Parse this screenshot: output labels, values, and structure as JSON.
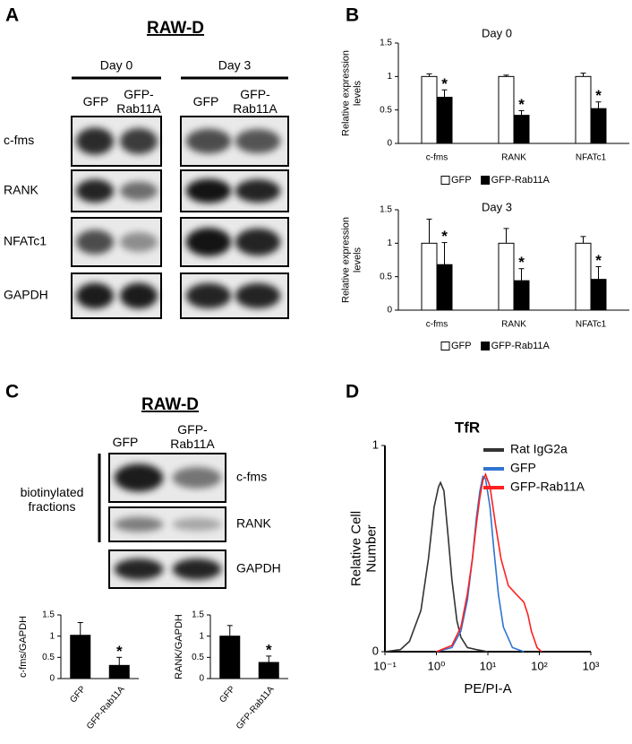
{
  "figure": {
    "panel_labels": [
      "A",
      "B",
      "C",
      "D"
    ]
  },
  "blot_a": {
    "title": "RAW-D",
    "groups": [
      "Day 0",
      "Day 3"
    ],
    "lanes": [
      "GFP",
      "GFP-Rab11A",
      "GFP",
      "GFP-Rab11A"
    ],
    "rows": [
      "c-fms",
      "RANK",
      "NFATc1",
      "GAPDH"
    ]
  },
  "blot_c": {
    "title": "RAW-D",
    "lanes": [
      "GFP",
      "GFP-Rab11A"
    ],
    "bracket_label": "biotinylated fractions",
    "rows": [
      "c-fms",
      "RANK",
      "GAPDH"
    ]
  },
  "chart_data": [
    {
      "type": "bar",
      "title": "Day 0",
      "y_label": "Relative expression levels",
      "categories": [
        "c-fms",
        "RANK",
        "NFATc1"
      ],
      "series": [
        {
          "name": "GFP",
          "color": "#ffffff",
          "values": [
            1,
            1,
            1
          ],
          "errors": [
            0.04,
            0.02,
            0.05
          ]
        },
        {
          "name": "GFP-Rab11A",
          "color": "#000000",
          "values": [
            0.69,
            0.42,
            0.52
          ],
          "errors": [
            0.11,
            0.07,
            0.1
          ],
          "markers": [
            "*",
            "*",
            "*"
          ]
        }
      ],
      "ylim": [
        0,
        1.5
      ],
      "yticks": [
        0,
        0.5,
        1,
        1.5
      ],
      "legend": "bottom"
    },
    {
      "type": "bar",
      "title": "Day 3",
      "y_label": "Relative expression levels",
      "categories": [
        "c-fms",
        "RANK",
        "NFATc1"
      ],
      "series": [
        {
          "name": "GFP",
          "color": "#ffffff",
          "values": [
            1,
            1,
            1
          ],
          "errors": [
            0.36,
            0.22,
            0.1
          ]
        },
        {
          "name": "GFP-Rab11A",
          "color": "#000000",
          "values": [
            0.68,
            0.44,
            0.46
          ],
          "errors": [
            0.33,
            0.18,
            0.19
          ],
          "markers": [
            "*",
            "*",
            "*"
          ]
        }
      ],
      "ylim": [
        0,
        1.5
      ],
      "yticks": [
        0,
        0.5,
        1,
        1.5
      ],
      "legend": "bottom"
    },
    {
      "type": "bar",
      "y_label": "c-fms/GAPDH",
      "categories": [
        "GFP",
        "GFP-Rab11A"
      ],
      "values": [
        1.02,
        0.31
      ],
      "errors": [
        0.3,
        0.19
      ],
      "markers": [
        null,
        "*"
      ],
      "color": "#000000",
      "ylim": [
        0,
        1.5
      ],
      "yticks": [
        0,
        0.5,
        1,
        1.5
      ]
    },
    {
      "type": "bar",
      "y_label": "RANK/GAPDH",
      "categories": [
        "GFP",
        "GFP-Rab11A"
      ],
      "values": [
        1.0,
        0.38
      ],
      "errors": [
        0.25,
        0.15
      ],
      "markers": [
        null,
        "*"
      ],
      "color": "#000000",
      "ylim": [
        0,
        1.5
      ],
      "yticks": [
        0,
        0.5,
        1,
        1.5
      ]
    },
    {
      "type": "line",
      "title": "TfR",
      "y_label": "Relative Cell Number",
      "x_label": "PE/PI-A",
      "xscale": "log",
      "xlim": [
        0.1,
        1000
      ],
      "xticks": [
        {
          "value": 0.1,
          "label": "10⁻¹"
        },
        {
          "value": 1,
          "label": "10⁰"
        },
        {
          "value": 10,
          "label": "10¹"
        },
        {
          "value": 100,
          "label": "10²"
        },
        {
          "value": 1000,
          "label": "10³"
        }
      ],
      "ylim": [
        0,
        1
      ],
      "yticks": [
        0,
        1
      ],
      "legend": "upper right",
      "series": [
        {
          "name": "Rat IgG2a",
          "color": "#333333",
          "x": [
            0.1,
            0.2,
            0.3,
            0.5,
            0.7,
            0.9,
            1.1,
            1.2,
            1.4,
            1.7,
            2,
            2.5,
            3,
            4,
            6,
            10
          ],
          "values": [
            0,
            0.01,
            0.05,
            0.2,
            0.45,
            0.7,
            0.8,
            0.82,
            0.78,
            0.55,
            0.35,
            0.15,
            0.07,
            0.02,
            0.01,
            0
          ]
        },
        {
          "name": "GFP",
          "color": "#2f74d0",
          "x": [
            1,
            2,
            3,
            4,
            5,
            6,
            7,
            8,
            9,
            11,
            13,
            16,
            20,
            30,
            50
          ],
          "values": [
            0,
            0.02,
            0.1,
            0.25,
            0.45,
            0.65,
            0.78,
            0.85,
            0.84,
            0.7,
            0.5,
            0.28,
            0.12,
            0.02,
            0
          ]
        },
        {
          "name": "GFP-Rab11A",
          "color": "#ff2020",
          "x": [
            1,
            2,
            3,
            4,
            5,
            6,
            7,
            8,
            9,
            11,
            14,
            18,
            25,
            35,
            50,
            60,
            70,
            90,
            110
          ],
          "values": [
            0,
            0.03,
            0.12,
            0.28,
            0.45,
            0.62,
            0.75,
            0.83,
            0.86,
            0.8,
            0.62,
            0.45,
            0.32,
            0.28,
            0.24,
            0.18,
            0.1,
            0.02,
            0
          ]
        }
      ]
    }
  ]
}
